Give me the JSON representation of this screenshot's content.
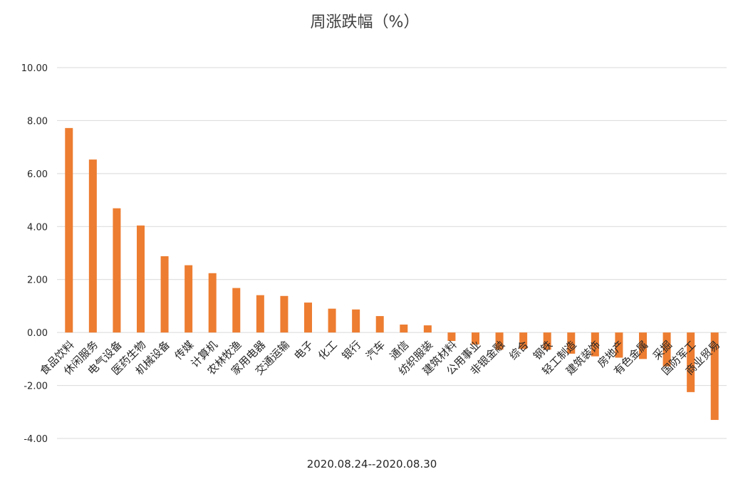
{
  "chart_data": {
    "type": "bar",
    "title": "周涨跌幅（%）",
    "xlabel": "2020.08.24--2020.08.30",
    "ylabel": "",
    "ylim": [
      -4,
      10
    ],
    "yticks": [
      "-4.00",
      "-2.00",
      "0.00",
      "2.00",
      "4.00",
      "6.00",
      "8.00",
      "10.00"
    ],
    "grid": true,
    "legend": "none",
    "bar_color": "#ED7D31",
    "categories": [
      "食品饮料",
      "休闲服务",
      "电气设备",
      "医药生物",
      "机械设备",
      "传媒",
      "计算机",
      "农林牧渔",
      "家用电器",
      "交通运输",
      "电子",
      "化工",
      "银行",
      "汽车",
      "通信",
      "纺织服装",
      "建筑材料",
      "公用事业",
      "非银金融",
      "综合",
      "钢铁",
      "轻工制造",
      "建筑装饰",
      "房地产",
      "有色金属",
      "采掘",
      "国防军工",
      "商业贸易"
    ],
    "values": [
      7.72,
      6.53,
      4.69,
      4.04,
      2.88,
      2.54,
      2.24,
      1.68,
      1.41,
      1.38,
      1.13,
      0.9,
      0.87,
      0.62,
      0.3,
      0.27,
      -0.32,
      -0.45,
      -0.65,
      -0.62,
      -0.65,
      -0.8,
      -0.9,
      -0.95,
      -1.0,
      -1.28,
      -2.25,
      -3.3
    ]
  }
}
